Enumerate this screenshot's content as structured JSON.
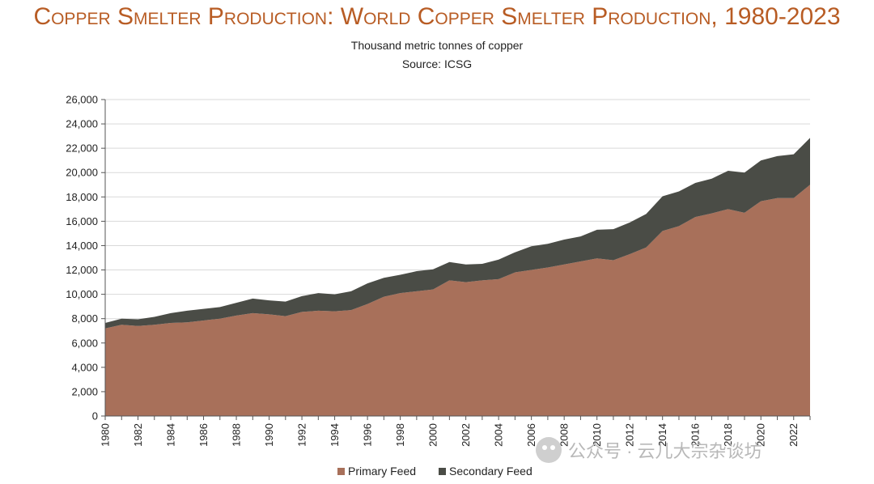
{
  "title": "Copper Smelter Production: World Copper Smelter Production, 1980-2023",
  "subtitle": "Thousand metric tonnes of copper",
  "source": "Source: ICSG",
  "watermark": "公众号 · 云儿大宗杂谈坊",
  "colors": {
    "primary": "#a8705a",
    "secondary": "#4a4c46",
    "title": "#b85c24",
    "grid": "#d9d9d9"
  },
  "chart_data": {
    "type": "area",
    "stacked": true,
    "x": [
      1980,
      1981,
      1982,
      1983,
      1984,
      1985,
      1986,
      1987,
      1988,
      1989,
      1990,
      1991,
      1992,
      1993,
      1994,
      1995,
      1996,
      1997,
      1998,
      1999,
      2000,
      2001,
      2002,
      2003,
      2004,
      2005,
      2006,
      2007,
      2008,
      2009,
      2010,
      2011,
      2012,
      2013,
      2014,
      2015,
      2016,
      2017,
      2018,
      2019,
      2020,
      2021,
      2022,
      2023
    ],
    "x_tick_labels": [
      "1980",
      "1982",
      "1984",
      "1986",
      "1988",
      "1990",
      "1992",
      "1994",
      "1996",
      "1998",
      "2000",
      "2002",
      "2004",
      "2006",
      "2008",
      "2010",
      "2012",
      "2014",
      "2016",
      "2018",
      "2020",
      "2022"
    ],
    "ylim": [
      0,
      26000
    ],
    "y_tick_labels": [
      "0",
      "2,000",
      "4,000",
      "6,000",
      "8,000",
      "10,000",
      "12,000",
      "14,000",
      "16,000",
      "18,000",
      "20,000",
      "22,000",
      "24,000",
      "26,000"
    ],
    "grid": true,
    "legend_position": "bottom",
    "series": [
      {
        "name": "Primary Feed",
        "values": [
          7200,
          7500,
          7400,
          7500,
          7650,
          7700,
          7850,
          8000,
          8250,
          8450,
          8350,
          8200,
          8550,
          8650,
          8600,
          8700,
          9200,
          9800,
          10100,
          10250,
          10400,
          11150,
          11000,
          11150,
          11250,
          11800,
          12000,
          12200,
          12450,
          12700,
          12950,
          12800,
          13300,
          13850,
          15200,
          15600,
          16350,
          16650,
          17000,
          16700,
          17650,
          17900,
          17900,
          19000
        ]
      },
      {
        "name": "Secondary Feed",
        "values": [
          450,
          500,
          550,
          650,
          800,
          950,
          950,
          950,
          1050,
          1200,
          1150,
          1200,
          1300,
          1450,
          1400,
          1550,
          1700,
          1550,
          1500,
          1650,
          1650,
          1500,
          1450,
          1350,
          1600,
          1650,
          1950,
          1950,
          2050,
          2050,
          2350,
          2550,
          2600,
          2750,
          2850,
          2850,
          2800,
          2850,
          3150,
          3300,
          3350,
          3450,
          3600,
          3850
        ]
      }
    ]
  }
}
